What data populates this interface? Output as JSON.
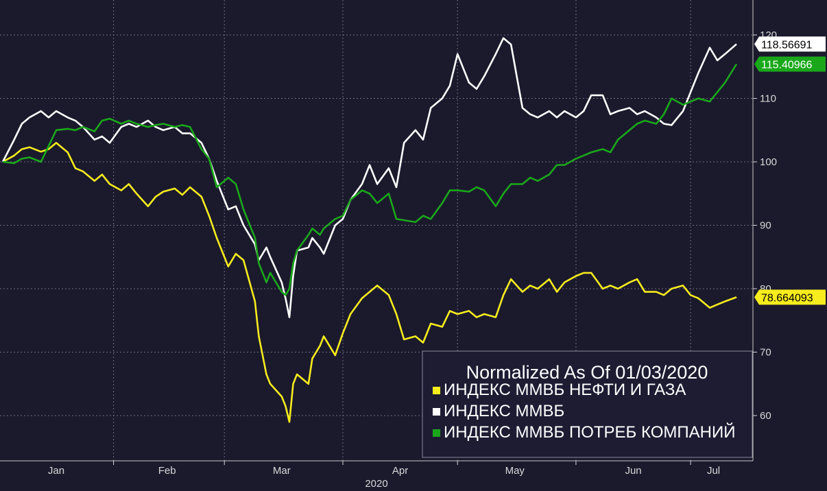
{
  "chart_data": {
    "type": "line",
    "title": "Normalized As Of 01/03/2020",
    "xlabel": "",
    "ylabel": "",
    "x_tick_labels": [
      "Jan",
      "Feb",
      "Mar",
      "Apr",
      "May",
      "Jun",
      "Jul"
    ],
    "x_year_label": "2020",
    "x_range": [
      "2020-01-03",
      "2020-07-13"
    ],
    "ylim": [
      52,
      128
    ],
    "y_ticks": [
      60,
      70,
      80,
      90,
      100,
      110,
      120
    ],
    "grid": true,
    "legend_position": "bottom-right",
    "series": [
      {
        "name": "ИНДЕКС ММВБ НЕФТИ И ГАЗА",
        "color": "#f7ec1d",
        "last_value_label": "78.664093",
        "points": [
          [
            "2020-01-03",
            100.0
          ],
          [
            "2020-01-06",
            101.0
          ],
          [
            "2020-01-08",
            102.0
          ],
          [
            "2020-01-10",
            102.3
          ],
          [
            "2020-01-13",
            101.6
          ],
          [
            "2020-01-15",
            102.0
          ],
          [
            "2020-01-17",
            103.0
          ],
          [
            "2020-01-20",
            101.5
          ],
          [
            "2020-01-22",
            99.0
          ],
          [
            "2020-01-24",
            98.5
          ],
          [
            "2020-01-27",
            97.0
          ],
          [
            "2020-01-29",
            98.0
          ],
          [
            "2020-01-31",
            96.5
          ],
          [
            "2020-02-03",
            95.5
          ],
          [
            "2020-02-05",
            96.5
          ],
          [
            "2020-02-07",
            95.0
          ],
          [
            "2020-02-10",
            93.0
          ],
          [
            "2020-02-12",
            94.5
          ],
          [
            "2020-02-14",
            95.3
          ],
          [
            "2020-02-17",
            95.8
          ],
          [
            "2020-02-19",
            94.8
          ],
          [
            "2020-02-21",
            96.0
          ],
          [
            "2020-02-24",
            94.5
          ],
          [
            "2020-02-26",
            91.5
          ],
          [
            "2020-02-28",
            88.0
          ],
          [
            "2020-03-02",
            83.5
          ],
          [
            "2020-03-04",
            85.5
          ],
          [
            "2020-03-06",
            84.5
          ],
          [
            "2020-03-09",
            78.0
          ],
          [
            "2020-03-10",
            72.5
          ],
          [
            "2020-03-12",
            66.5
          ],
          [
            "2020-03-13",
            65.0
          ],
          [
            "2020-03-16",
            63.0
          ],
          [
            "2020-03-17",
            61.5
          ],
          [
            "2020-03-18",
            59.0
          ],
          [
            "2020-03-19",
            65.0
          ],
          [
            "2020-03-20",
            66.5
          ],
          [
            "2020-03-23",
            65.0
          ],
          [
            "2020-03-24",
            69.0
          ],
          [
            "2020-03-26",
            71.0
          ],
          [
            "2020-03-27",
            72.5
          ],
          [
            "2020-03-30",
            69.5
          ],
          [
            "2020-04-01",
            73.0
          ],
          [
            "2020-04-03",
            76.0
          ],
          [
            "2020-04-06",
            78.5
          ],
          [
            "2020-04-08",
            79.5
          ],
          [
            "2020-04-10",
            80.5
          ],
          [
            "2020-04-13",
            79.0
          ],
          [
            "2020-04-15",
            76.0
          ],
          [
            "2020-04-17",
            72.0
          ],
          [
            "2020-04-20",
            72.5
          ],
          [
            "2020-04-22",
            71.5
          ],
          [
            "2020-04-24",
            74.5
          ],
          [
            "2020-04-27",
            74.0
          ],
          [
            "2020-04-29",
            76.5
          ],
          [
            "2020-05-01",
            76.0
          ],
          [
            "2020-05-04",
            76.5
          ],
          [
            "2020-05-06",
            75.5
          ],
          [
            "2020-05-08",
            76.0
          ],
          [
            "2020-05-11",
            75.5
          ],
          [
            "2020-05-13",
            79.0
          ],
          [
            "2020-05-15",
            81.5
          ],
          [
            "2020-05-18",
            79.5
          ],
          [
            "2020-05-20",
            80.5
          ],
          [
            "2020-05-22",
            80.0
          ],
          [
            "2020-05-25",
            81.5
          ],
          [
            "2020-05-27",
            79.5
          ],
          [
            "2020-05-29",
            81.0
          ],
          [
            "2020-06-01",
            82.0
          ],
          [
            "2020-06-03",
            82.5
          ],
          [
            "2020-06-05",
            82.5
          ],
          [
            "2020-06-08",
            80.0
          ],
          [
            "2020-06-10",
            80.5
          ],
          [
            "2020-06-12",
            80.0
          ],
          [
            "2020-06-15",
            81.0
          ],
          [
            "2020-06-17",
            81.5
          ],
          [
            "2020-06-19",
            79.5
          ],
          [
            "2020-06-22",
            79.5
          ],
          [
            "2020-06-24",
            79.0
          ],
          [
            "2020-06-26",
            80.0
          ],
          [
            "2020-06-29",
            80.5
          ],
          [
            "2020-07-01",
            79.0
          ],
          [
            "2020-07-03",
            78.5
          ],
          [
            "2020-07-06",
            77.0
          ],
          [
            "2020-07-08",
            77.5
          ],
          [
            "2020-07-10",
            78.0
          ],
          [
            "2020-07-13",
            78.664093
          ]
        ]
      },
      {
        "name": "ИНДЕКС ММВБ",
        "color": "#ffffff",
        "last_value_label": "118.56691",
        "points": [
          [
            "2020-01-03",
            100.0
          ],
          [
            "2020-01-06",
            103.5
          ],
          [
            "2020-01-08",
            106.0
          ],
          [
            "2020-01-10",
            107.0
          ],
          [
            "2020-01-13",
            108.0
          ],
          [
            "2020-01-15",
            107.0
          ],
          [
            "2020-01-17",
            108.0
          ],
          [
            "2020-01-20",
            107.0
          ],
          [
            "2020-01-22",
            106.5
          ],
          [
            "2020-01-24",
            105.5
          ],
          [
            "2020-01-27",
            103.5
          ],
          [
            "2020-01-29",
            104.0
          ],
          [
            "2020-01-31",
            103.0
          ],
          [
            "2020-02-03",
            105.5
          ],
          [
            "2020-02-05",
            106.0
          ],
          [
            "2020-02-07",
            105.5
          ],
          [
            "2020-02-10",
            106.5
          ],
          [
            "2020-02-12",
            105.5
          ],
          [
            "2020-02-14",
            105.0
          ],
          [
            "2020-02-17",
            105.5
          ],
          [
            "2020-02-19",
            104.5
          ],
          [
            "2020-02-21",
            104.5
          ],
          [
            "2020-02-24",
            103.0
          ],
          [
            "2020-02-26",
            100.5
          ],
          [
            "2020-02-28",
            97.0
          ],
          [
            "2020-03-02",
            92.5
          ],
          [
            "2020-03-04",
            93.0
          ],
          [
            "2020-03-06",
            90.0
          ],
          [
            "2020-03-09",
            87.0
          ],
          [
            "2020-03-10",
            84.5
          ],
          [
            "2020-03-12",
            86.5
          ],
          [
            "2020-03-13",
            85.0
          ],
          [
            "2020-03-16",
            81.0
          ],
          [
            "2020-03-17",
            78.5
          ],
          [
            "2020-03-18",
            75.5
          ],
          [
            "2020-03-19",
            82.0
          ],
          [
            "2020-03-20",
            86.0
          ],
          [
            "2020-03-23",
            86.5
          ],
          [
            "2020-03-24",
            88.0
          ],
          [
            "2020-03-26",
            86.5
          ],
          [
            "2020-03-27",
            85.5
          ],
          [
            "2020-03-30",
            90.0
          ],
          [
            "2020-04-01",
            91.0
          ],
          [
            "2020-04-03",
            94.0
          ],
          [
            "2020-04-06",
            96.5
          ],
          [
            "2020-04-08",
            99.5
          ],
          [
            "2020-04-10",
            96.5
          ],
          [
            "2020-04-13",
            99.0
          ],
          [
            "2020-04-15",
            96.0
          ],
          [
            "2020-04-17",
            103.0
          ],
          [
            "2020-04-20",
            105.0
          ],
          [
            "2020-04-22",
            103.5
          ],
          [
            "2020-04-24",
            108.5
          ],
          [
            "2020-04-27",
            110.0
          ],
          [
            "2020-04-29",
            112.0
          ],
          [
            "2020-05-01",
            117.0
          ],
          [
            "2020-05-04",
            112.5
          ],
          [
            "2020-05-06",
            111.5
          ],
          [
            "2020-05-08",
            113.5
          ],
          [
            "2020-05-11",
            117.0
          ],
          [
            "2020-05-13",
            119.5
          ],
          [
            "2020-05-15",
            118.5
          ],
          [
            "2020-05-18",
            108.5
          ],
          [
            "2020-05-20",
            107.5
          ],
          [
            "2020-05-22",
            107.0
          ],
          [
            "2020-05-25",
            108.0
          ],
          [
            "2020-05-27",
            107.0
          ],
          [
            "2020-05-29",
            108.0
          ],
          [
            "2020-06-01",
            107.0
          ],
          [
            "2020-06-03",
            108.0
          ],
          [
            "2020-06-05",
            110.5
          ],
          [
            "2020-06-08",
            110.5
          ],
          [
            "2020-06-10",
            107.5
          ],
          [
            "2020-06-12",
            108.0
          ],
          [
            "2020-06-15",
            108.5
          ],
          [
            "2020-06-17",
            107.5
          ],
          [
            "2020-06-19",
            108.0
          ],
          [
            "2020-06-22",
            107.0
          ],
          [
            "2020-06-24",
            106.0
          ],
          [
            "2020-06-26",
            105.8
          ],
          [
            "2020-06-29",
            108.0
          ],
          [
            "2020-07-01",
            111.0
          ],
          [
            "2020-07-03",
            114.0
          ],
          [
            "2020-07-06",
            118.0
          ],
          [
            "2020-07-08",
            116.0
          ],
          [
            "2020-07-10",
            117.0
          ],
          [
            "2020-07-13",
            118.56691
          ]
        ]
      },
      {
        "name": "ИНДЕКС ММВБ ПОТРЕБ КОМПАНИЙ",
        "color": "#1aa81a",
        "last_value_label": "115.40966",
        "points": [
          [
            "2020-01-03",
            100.0
          ],
          [
            "2020-01-06",
            99.8
          ],
          [
            "2020-01-08",
            100.5
          ],
          [
            "2020-01-10",
            100.7
          ],
          [
            "2020-01-13",
            100.0
          ],
          [
            "2020-01-15",
            102.5
          ],
          [
            "2020-01-17",
            105.0
          ],
          [
            "2020-01-20",
            105.2
          ],
          [
            "2020-01-22",
            105.0
          ],
          [
            "2020-01-24",
            105.5
          ],
          [
            "2020-01-27",
            104.8
          ],
          [
            "2020-01-29",
            106.5
          ],
          [
            "2020-01-31",
            106.8
          ],
          [
            "2020-02-03",
            106.0
          ],
          [
            "2020-02-05",
            106.5
          ],
          [
            "2020-02-07",
            106.0
          ],
          [
            "2020-02-10",
            105.5
          ],
          [
            "2020-02-12",
            105.8
          ],
          [
            "2020-02-14",
            106.0
          ],
          [
            "2020-02-17",
            105.5
          ],
          [
            "2020-02-19",
            105.8
          ],
          [
            "2020-02-21",
            105.5
          ],
          [
            "2020-02-24",
            102.0
          ],
          [
            "2020-02-26",
            100.5
          ],
          [
            "2020-02-28",
            96.0
          ],
          [
            "2020-03-02",
            97.5
          ],
          [
            "2020-03-04",
            96.5
          ],
          [
            "2020-03-06",
            92.5
          ],
          [
            "2020-03-09",
            88.0
          ],
          [
            "2020-03-10",
            84.0
          ],
          [
            "2020-03-12",
            81.0
          ],
          [
            "2020-03-13",
            82.5
          ],
          [
            "2020-03-16",
            79.5
          ],
          [
            "2020-03-17",
            79.0
          ],
          [
            "2020-03-18",
            80.0
          ],
          [
            "2020-03-19",
            84.0
          ],
          [
            "2020-03-20",
            86.0
          ],
          [
            "2020-03-23",
            88.5
          ],
          [
            "2020-03-24",
            89.5
          ],
          [
            "2020-03-26",
            88.5
          ],
          [
            "2020-03-27",
            89.5
          ],
          [
            "2020-03-30",
            91.0
          ],
          [
            "2020-04-01",
            91.5
          ],
          [
            "2020-04-03",
            94.0
          ],
          [
            "2020-04-06",
            95.5
          ],
          [
            "2020-04-08",
            95.0
          ],
          [
            "2020-04-10",
            93.5
          ],
          [
            "2020-04-13",
            95.0
          ],
          [
            "2020-04-15",
            91.0
          ],
          [
            "2020-04-17",
            90.8
          ],
          [
            "2020-04-20",
            90.5
          ],
          [
            "2020-04-22",
            91.5
          ],
          [
            "2020-04-24",
            91.0
          ],
          [
            "2020-04-27",
            93.5
          ],
          [
            "2020-04-29",
            95.5
          ],
          [
            "2020-05-01",
            95.5
          ],
          [
            "2020-05-04",
            95.3
          ],
          [
            "2020-05-06",
            96.0
          ],
          [
            "2020-05-08",
            95.5
          ],
          [
            "2020-05-11",
            93.0
          ],
          [
            "2020-05-13",
            95.0
          ],
          [
            "2020-05-15",
            96.5
          ],
          [
            "2020-05-18",
            96.5
          ],
          [
            "2020-05-20",
            97.5
          ],
          [
            "2020-05-22",
            97.0
          ],
          [
            "2020-05-25",
            98.0
          ],
          [
            "2020-05-27",
            99.5
          ],
          [
            "2020-05-29",
            99.5
          ],
          [
            "2020-06-01",
            100.5
          ],
          [
            "2020-06-03",
            101.0
          ],
          [
            "2020-06-05",
            101.5
          ],
          [
            "2020-06-08",
            102.0
          ],
          [
            "2020-06-10",
            101.5
          ],
          [
            "2020-06-12",
            103.5
          ],
          [
            "2020-06-15",
            105.0
          ],
          [
            "2020-06-17",
            106.0
          ],
          [
            "2020-06-19",
            106.5
          ],
          [
            "2020-06-22",
            106.0
          ],
          [
            "2020-06-24",
            107.5
          ],
          [
            "2020-06-26",
            110.0
          ],
          [
            "2020-06-29",
            109.0
          ],
          [
            "2020-07-01",
            109.5
          ],
          [
            "2020-07-03",
            110.0
          ],
          [
            "2020-07-06",
            109.5
          ],
          [
            "2020-07-08",
            111.0
          ],
          [
            "2020-07-10",
            112.5
          ],
          [
            "2020-07-13",
            115.40966
          ]
        ]
      }
    ]
  }
}
